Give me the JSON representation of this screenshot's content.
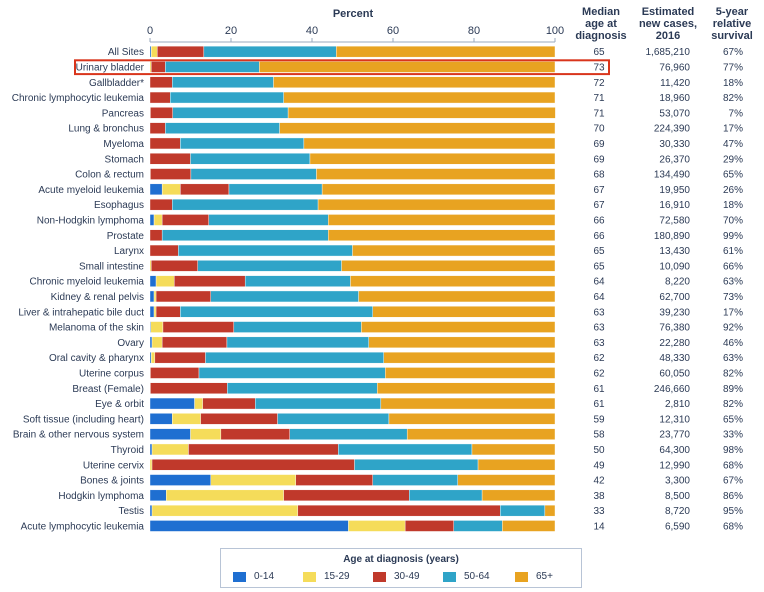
{
  "headers": {
    "percent": "Percent",
    "median_age": "Median age at diagnosis",
    "new_cases": "Estimated new cases, 2016",
    "survival": "5-year relative survival"
  },
  "legend": {
    "title": "Age at diagnosis (years)",
    "items": [
      "0-14",
      "15-29",
      "30-49",
      "50-64",
      "65+"
    ]
  },
  "colors": {
    "0-14": "#1f6fd1",
    "15-29": "#f5dc5a",
    "30-49": "#c0392b",
    "50-64": "#2fa4c8",
    "65+": "#e8a321",
    "highlight": "#d9351c"
  },
  "chart_data": {
    "type": "bar",
    "orientation": "horizontal",
    "stacked": true,
    "xlabel": "Percent",
    "xlim": [
      0,
      100
    ],
    "xticks": [
      0,
      20,
      40,
      60,
      80,
      100
    ],
    "highlighted_category": "Urinary bladder",
    "categories": [
      "All Sites",
      "Urinary bladder",
      "Gallbladder*",
      "Chronic lymphocytic leukemia",
      "Pancreas",
      "Lung & bronchus",
      "Myeloma",
      "Stomach",
      "Colon & rectum",
      "Acute myeloid leukemia",
      "Esophagus",
      "Non-Hodgkin lymphoma",
      "Prostate",
      "Larynx",
      "Small intestine",
      "Chronic myeloid leukemia",
      "Kidney & renal pelvis",
      "Liver & intrahepatic bile duct",
      "Melanoma of the skin",
      "Ovary",
      "Oral cavity & pharynx",
      "Uterine corpus",
      "Breast (Female)",
      "Eye & orbit",
      "Soft tissue (including heart)",
      "Brain & other nervous system",
      "Thyroid",
      "Uterine cervix",
      "Bones & joints",
      "Hodgkin lymphoma",
      "Testis",
      "Acute lymphocytic leukemia"
    ],
    "series": [
      {
        "name": "0-14",
        "values": [
          0.3,
          0,
          0,
          0,
          0,
          0,
          0,
          0,
          0,
          3,
          0,
          1,
          0,
          0,
          0,
          1.5,
          1,
          1,
          0.2,
          0.5,
          0.3,
          0,
          0,
          11,
          5.5,
          10,
          0.5,
          0,
          15,
          4,
          0.5,
          49
        ]
      },
      {
        "name": "15-29",
        "values": [
          1.5,
          0.3,
          0,
          0,
          0.1,
          0,
          0,
          0,
          0.1,
          4.5,
          0,
          2,
          0,
          0,
          0.3,
          4.5,
          0.5,
          0.5,
          3,
          2.5,
          0.9,
          0.1,
          0.1,
          2,
          7,
          7.5,
          9,
          0.5,
          21,
          29,
          36,
          14
        ]
      },
      {
        "name": "30-49",
        "values": [
          11.5,
          3.5,
          5.5,
          5,
          5.5,
          3.8,
          7.5,
          10,
          10,
          12,
          5.5,
          11.5,
          3,
          7,
          11.5,
          17.5,
          13.5,
          6,
          17.5,
          16,
          12.5,
          12,
          19,
          13,
          19,
          17,
          37,
          50,
          19,
          31,
          50,
          12
        ]
      },
      {
        "name": "50-64",
        "values": [
          32.7,
          23.2,
          25,
          28,
          28.5,
          28.2,
          30.5,
          29.5,
          31,
          23,
          36,
          29.5,
          41,
          43,
          35.5,
          26,
          36.5,
          47.5,
          31.5,
          35,
          44,
          46,
          37,
          31,
          27.5,
          29,
          33,
          30.5,
          21,
          18,
          11,
          12
        ]
      },
      {
        "name": "65+",
        "values": [
          54,
          73,
          69.5,
          67,
          66,
          68,
          62,
          60.5,
          58.9,
          57.5,
          58.5,
          56,
          56,
          50,
          52.7,
          50.5,
          48.5,
          45,
          47.8,
          46,
          42.3,
          41.9,
          43.9,
          43,
          41,
          36.5,
          20.5,
          19,
          24,
          18,
          2.5,
          13
        ]
      }
    ],
    "median_age": [
      "65",
      "73",
      "72",
      "71",
      "71",
      "70",
      "69",
      "69",
      "68",
      "67",
      "67",
      "66",
      "66",
      "65",
      "65",
      "64",
      "64",
      "63",
      "63",
      "63",
      "62",
      "62",
      "61",
      "61",
      "59",
      "58",
      "50",
      "49",
      "42",
      "38",
      "33",
      "14"
    ],
    "estimated_new_cases_2016": [
      "1,685,210",
      "76,960",
      "11,420",
      "18,960",
      "53,070",
      "224,390",
      "30,330",
      "26,370",
      "134,490",
      "19,950",
      "16,910",
      "72,580",
      "180,890",
      "13,430",
      "10,090",
      "8,220",
      "62,700",
      "39,230",
      "76,380",
      "22,280",
      "48,330",
      "60,050",
      "246,660",
      "2,810",
      "12,310",
      "23,770",
      "64,300",
      "12,990",
      "3,300",
      "8,500",
      "8,720",
      "6,590"
    ],
    "five_year_survival": [
      "67%",
      "77%",
      "18%",
      "82%",
      "7%",
      "17%",
      "47%",
      "29%",
      "65%",
      "26%",
      "18%",
      "70%",
      "99%",
      "61%",
      "66%",
      "63%",
      "73%",
      "17%",
      "92%",
      "46%",
      "63%",
      "82%",
      "89%",
      "82%",
      "65%",
      "33%",
      "98%",
      "68%",
      "67%",
      "86%",
      "95%",
      "68%"
    ]
  }
}
